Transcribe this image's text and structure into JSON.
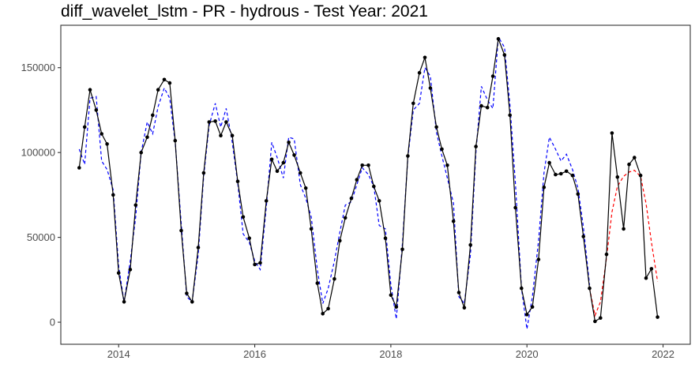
{
  "chart_data": {
    "type": "line",
    "title": "diff_wavelet_lstm - PR - hydrous - Test Year: 2021",
    "xlabel": "",
    "ylabel": "",
    "xlim": [
      2013.15,
      2022.4
    ],
    "ylim": [
      -13000,
      175000
    ],
    "x_ticks": [
      2014,
      2016,
      2018,
      2020,
      2022
    ],
    "y_ticks": [
      0,
      50000,
      100000,
      150000
    ],
    "grid": false,
    "legend": "none",
    "colors": {
      "observed": "#000000",
      "fitted": "#0000ff",
      "forecast": "#ff0000",
      "axis": "#333333"
    },
    "series": [
      {
        "style": "solid-line-with-points",
        "x": [
          2013.42,
          2013.5,
          2013.58,
          2013.67,
          2013.75,
          2013.83,
          2013.92,
          2014.0,
          2014.08,
          2014.17,
          2014.25,
          2014.33,
          2014.42,
          2014.5,
          2014.58,
          2014.67,
          2014.75,
          2014.83,
          2014.92,
          2015.0,
          2015.08,
          2015.17,
          2015.25,
          2015.33,
          2015.42,
          2015.5,
          2015.58,
          2015.67,
          2015.75,
          2015.83,
          2015.92,
          2016.0,
          2016.08,
          2016.17,
          2016.25,
          2016.33,
          2016.42,
          2016.5,
          2016.58,
          2016.67,
          2016.75,
          2016.83,
          2016.92,
          2017.0,
          2017.08,
          2017.17,
          2017.25,
          2017.33,
          2017.42,
          2017.5,
          2017.58,
          2017.67,
          2017.75,
          2017.83,
          2017.92,
          2018.0,
          2018.08,
          2018.17,
          2018.25,
          2018.33,
          2018.42,
          2018.5,
          2018.58,
          2018.67,
          2018.75,
          2018.83,
          2018.92,
          2019.0,
          2019.08,
          2019.17,
          2019.25,
          2019.33,
          2019.42,
          2019.5,
          2019.58,
          2019.67,
          2019.75,
          2019.83,
          2019.92,
          2020.0,
          2020.08,
          2020.17,
          2020.25,
          2020.33,
          2020.42,
          2020.5,
          2020.58,
          2020.67,
          2020.75,
          2020.83,
          2020.92,
          2021.0,
          2021.08,
          2021.17,
          2021.25,
          2021.33,
          2021.42,
          2021.5,
          2021.58,
          2021.67,
          2021.75,
          2021.83,
          2021.92
        ],
        "values": [
          91000,
          115000,
          137000,
          125000,
          111000,
          105000,
          75000,
          29000,
          12000,
          31000,
          69000,
          100000,
          109000,
          122000,
          137000,
          143000,
          141000,
          107000,
          54000,
          17000,
          12000,
          44000,
          88000,
          118000,
          118500,
          110000,
          118000,
          110000,
          83000,
          62000,
          49500,
          34000,
          35000,
          71500,
          96000,
          89000,
          94000,
          106000,
          98500,
          88000,
          79000,
          55000,
          23000,
          5000,
          8000,
          25500,
          48000,
          61500,
          73000,
          84000,
          92500,
          92500,
          80000,
          71500,
          49500,
          16000,
          9000,
          43000,
          98000,
          129000,
          147000,
          156000,
          138000,
          115000,
          102000,
          92500,
          59500,
          17500,
          8500,
          45500,
          103500,
          127500,
          126500,
          145000,
          167000,
          157500,
          122000,
          67500,
          20000,
          4500,
          9000,
          37000,
          79500,
          94000,
          87000,
          87500,
          89000,
          86500,
          75500,
          50500,
          20000,
          500,
          2500,
          40000,
          111500,
          85500,
          55000,
          93000,
          97000,
          86500,
          26000,
          31500,
          3000
        ]
      },
      {
        "style": "dashed-line",
        "x": [
          2013.42,
          2013.5,
          2013.58,
          2013.67,
          2013.75,
          2013.83,
          2013.92,
          2014.0,
          2014.08,
          2014.17,
          2014.25,
          2014.33,
          2014.42,
          2014.5,
          2014.58,
          2014.67,
          2014.75,
          2014.83,
          2014.92,
          2015.0,
          2015.08,
          2015.17,
          2015.25,
          2015.33,
          2015.42,
          2015.5,
          2015.58,
          2015.67,
          2015.75,
          2015.83,
          2015.92,
          2016.0,
          2016.08,
          2016.17,
          2016.25,
          2016.33,
          2016.42,
          2016.5,
          2016.58,
          2016.67,
          2016.75,
          2016.83,
          2016.92,
          2017.0,
          2017.08,
          2017.17,
          2017.25,
          2017.33,
          2017.42,
          2017.5,
          2017.58,
          2017.67,
          2017.75,
          2017.83,
          2017.92,
          2018.0,
          2018.08,
          2018.17,
          2018.25,
          2018.33,
          2018.42,
          2018.5,
          2018.58,
          2018.67,
          2018.75,
          2018.83,
          2018.92,
          2019.0,
          2019.08,
          2019.17,
          2019.25,
          2019.33,
          2019.42,
          2019.5,
          2019.58,
          2019.67,
          2019.75,
          2019.83,
          2019.92,
          2020.0,
          2020.08,
          2020.17,
          2020.25,
          2020.33,
          2020.42,
          2020.5,
          2020.58,
          2020.67,
          2020.75,
          2020.83,
          2020.92
        ],
        "values": [
          102000,
          93000,
          132000,
          133000,
          95000,
          90000,
          78000,
          33000,
          12000,
          36000,
          62000,
          100000,
          118000,
          111000,
          127000,
          138000,
          132000,
          106000,
          58000,
          15000,
          12000,
          40000,
          86000,
          116000,
          129000,
          115000,
          126000,
          106000,
          82000,
          52000,
          47000,
          36000,
          31000,
          68000,
          106000,
          97000,
          85000,
          109000,
          108000,
          81000,
          73000,
          62000,
          31000,
          11000,
          20000,
          36000,
          53000,
          69000,
          71000,
          81000,
          91000,
          87000,
          80000,
          57000,
          55000,
          22000,
          2000,
          46000,
          97000,
          125000,
          129000,
          150000,
          145000,
          112000,
          98000,
          85000,
          70000,
          15000,
          11000,
          40000,
          100000,
          139000,
          131000,
          126000,
          168000,
          162000,
          128000,
          82000,
          20000,
          -4000,
          15000,
          48000,
          88000,
          109000,
          102000,
          95000,
          99000,
          90000,
          79000,
          56000,
          22000
        ]
      },
      {
        "style": "dashed-line",
        "x": [
          2020.92,
          2021.0,
          2021.08,
          2021.17,
          2021.25,
          2021.33,
          2021.42,
          2021.5,
          2021.58,
          2021.67,
          2021.75,
          2021.83,
          2021.92
        ],
        "values": [
          20000,
          4000,
          12000,
          38000,
          65000,
          80000,
          86000,
          88500,
          89500,
          86000,
          70000,
          47000,
          24000
        ]
      }
    ]
  }
}
